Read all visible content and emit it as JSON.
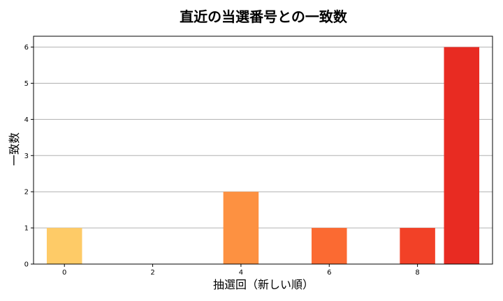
{
  "chart_data": {
    "type": "bar",
    "title": "直近の当選番号との一致数",
    "xlabel": "抽選回（新しい順）",
    "ylabel": "一致数",
    "x": [
      0,
      1,
      2,
      3,
      4,
      5,
      6,
      7,
      8,
      9
    ],
    "values": [
      1,
      0,
      0,
      0,
      2,
      0,
      1,
      0,
      1,
      6
    ],
    "colors": [
      "#fecb67",
      "#fed976",
      "#feb24c",
      "#feb24c",
      "#fd9141",
      "#fd8d3c",
      "#fb6a32",
      "#fc4e2a",
      "#f24127",
      "#e82b22"
    ],
    "xticks": [
      0,
      2,
      4,
      6,
      8
    ],
    "yticks": [
      0,
      1,
      2,
      3,
      4,
      5,
      6
    ],
    "xlim": [
      -0.7,
      9.7
    ],
    "ylim": [
      0,
      6.3
    ],
    "grid": "y"
  }
}
